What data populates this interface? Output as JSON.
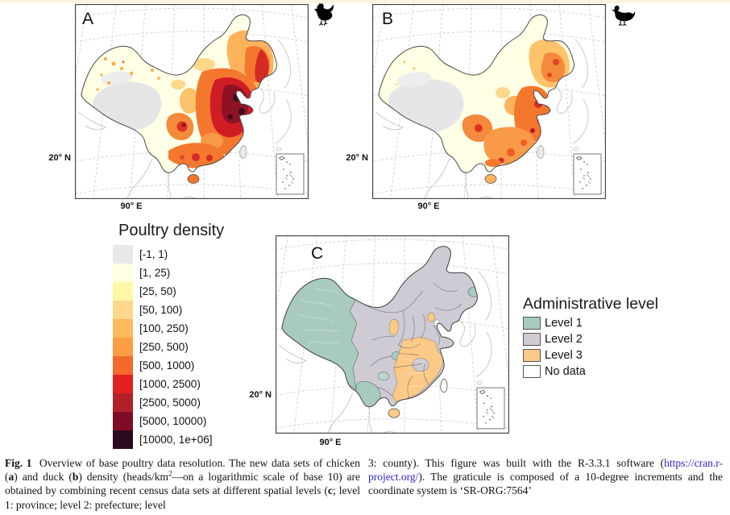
{
  "figure": {
    "panel_a": {
      "letter": "A",
      "lat": "20° N",
      "lon": "90° E",
      "icon": "chicken"
    },
    "panel_b": {
      "letter": "B",
      "lat": "20° N",
      "lon": "90° E",
      "icon": "duck"
    },
    "panel_c": {
      "letter": "C",
      "lat": "20° N",
      "lon": "90° E"
    }
  },
  "density_legend": {
    "title": "Poultry density",
    "items": [
      {
        "range": "[-1, 1)",
        "color": "#e8e8e8"
      },
      {
        "range": "[1, 25)",
        "color": "#ffffe0"
      },
      {
        "range": "[25, 50)",
        "color": "#fff7a6"
      },
      {
        "range": "[50, 100)",
        "color": "#fdd78a"
      },
      {
        "range": "[100, 250)",
        "color": "#fdb95e"
      },
      {
        "range": "[250, 500)",
        "color": "#fd9d43"
      },
      {
        "range": "[500, 1000)",
        "color": "#f4682b"
      },
      {
        "range": "[1000, 2500)",
        "color": "#e2201f"
      },
      {
        "range": "[2500, 5000)",
        "color": "#b2202a"
      },
      {
        "range": "[5000, 10000)",
        "color": "#7e0c27"
      },
      {
        "range": "[10000, 1e+06]",
        "color": "#2b0a1e"
      }
    ]
  },
  "admin_legend": {
    "title": "Administrative level",
    "items": [
      {
        "label": "Level 1",
        "color": "#a9cabf"
      },
      {
        "label": "Level 2",
        "color": "#cfcad3"
      },
      {
        "label": "Level 3",
        "color": "#fbc987"
      },
      {
        "label": "No data",
        "color": "#ffffff"
      }
    ]
  },
  "caption": {
    "left_segments": [
      {
        "t": "bold",
        "x": "Fig. 1"
      },
      {
        "t": "text",
        "x": "  Overview of base poultry data resolution. The new data sets of chicken ("
      },
      {
        "t": "bold",
        "x": "a"
      },
      {
        "t": "text",
        "x": ") and duck ("
      },
      {
        "t": "bold",
        "x": "b"
      },
      {
        "t": "text",
        "x": ") density (heads/km"
      },
      {
        "t": "sup",
        "x": "2"
      },
      {
        "t": "text",
        "x": "—on a logarithmic scale of base 10) are obtained by combining recent census data sets at different spatial levels ("
      },
      {
        "t": "bold",
        "x": "c"
      },
      {
        "t": "text",
        "x": "; level 1: province; level 2: prefecture; level"
      }
    ],
    "right_segments": [
      {
        "t": "text",
        "x": "3: county). This figure was built with the R-3.3.1 software ("
      },
      {
        "t": "link",
        "x": "https://cran.r-project.org/"
      },
      {
        "t": "text",
        "x": "). The graticule is composed of a 10-degree increments and the coordinate system is ‘SR-ORG:7564’"
      }
    ]
  }
}
